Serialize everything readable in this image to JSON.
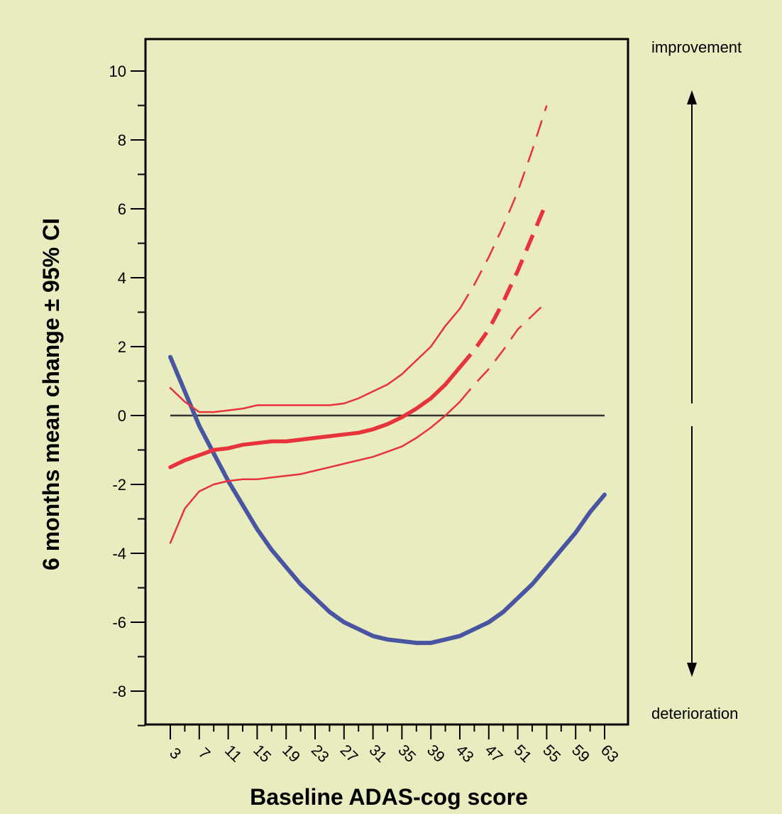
{
  "chart_data": {
    "type": "line",
    "xlabel": "Baseline ADAS-cog score",
    "ylabel": "6 months mean change ± 95% CI",
    "x_ticks": [
      3,
      7,
      11,
      15,
      19,
      23,
      27,
      31,
      35,
      39,
      43,
      47,
      51,
      55,
      59,
      63
    ],
    "y_ticks": [
      10,
      8,
      6,
      4,
      2,
      0,
      -2,
      -4,
      -6,
      -8
    ],
    "xlim": [
      -0.5,
      66.5
    ],
    "ylim": [
      -8.8,
      11.2
    ],
    "grid": false,
    "reference_line": 0,
    "annotations": {
      "top": "improvement",
      "bottom": "deterioration"
    },
    "colors": {
      "treatment": "#e8323c",
      "placebo": "#4a55a2",
      "zero_line": "#333333",
      "background": "#e8ecbf"
    },
    "series": [
      {
        "color": "#4a55a2",
        "x": [
          3,
          5,
          7,
          9,
          11,
          13,
          15,
          17,
          19,
          21,
          23,
          25,
          27,
          29,
          31,
          33,
          35,
          37,
          39,
          41,
          43,
          45,
          47,
          49,
          51,
          53,
          55,
          57,
          59,
          61,
          63
        ],
        "values": [
          1.7,
          0.7,
          -0.3,
          -1.1,
          -1.9,
          -2.6,
          -3.3,
          -3.9,
          -4.4,
          -4.9,
          -5.3,
          -5.7,
          -6.0,
          -6.2,
          -6.4,
          -6.5,
          -6.55,
          -6.6,
          -6.6,
          -6.5,
          -6.4,
          -6.2,
          -6.0,
          -5.7,
          -5.3,
          -4.9,
          -4.4,
          -3.9,
          -3.4,
          -2.8,
          -2.3
        ]
      },
      {
        "color": "#e8323c",
        "x": [
          3,
          5,
          7,
          9,
          11,
          13,
          15,
          17,
          19,
          21,
          23,
          25,
          27,
          29,
          31,
          33,
          35,
          37,
          39,
          41,
          43,
          45,
          47,
          49,
          51,
          53,
          55
        ],
        "values": [
          -1.5,
          -1.3,
          -1.15,
          -1.0,
          -0.95,
          -0.85,
          -0.8,
          -0.75,
          -0.75,
          -0.7,
          -0.65,
          -0.6,
          -0.55,
          -0.5,
          -0.4,
          -0.25,
          -0.05,
          0.2,
          0.5,
          0.9,
          1.4,
          1.9,
          2.5,
          3.3,
          4.2,
          5.2,
          6.2
        ]
      },
      {
        "color": "#e8323c",
        "x": [
          3,
          5,
          7,
          9,
          11,
          13,
          15,
          17,
          19,
          21,
          23,
          25,
          27,
          29,
          31,
          33,
          35,
          37,
          39,
          41,
          43,
          45,
          47,
          49,
          51,
          53,
          55
        ],
        "values": [
          0.8,
          0.4,
          0.1,
          0.1,
          0.15,
          0.2,
          0.3,
          0.3,
          0.3,
          0.3,
          0.3,
          0.3,
          0.35,
          0.5,
          0.7,
          0.9,
          1.2,
          1.6,
          2.0,
          2.6,
          3.1,
          3.8,
          4.6,
          5.5,
          6.5,
          7.7,
          9.0
        ]
      },
      {
        "color": "#e8323c",
        "x": [
          3,
          5,
          7,
          9,
          11,
          13,
          15,
          17,
          19,
          21,
          23,
          25,
          27,
          29,
          31,
          33,
          35,
          37,
          39,
          41,
          43,
          45,
          47,
          49,
          51,
          53,
          55
        ],
        "values": [
          -3.7,
          -2.7,
          -2.2,
          -2.0,
          -1.9,
          -1.85,
          -1.85,
          -1.8,
          -1.75,
          -1.7,
          -1.6,
          -1.5,
          -1.4,
          -1.3,
          -1.2,
          -1.05,
          -0.9,
          -0.65,
          -0.35,
          0.0,
          0.4,
          0.9,
          1.35,
          1.9,
          2.5,
          2.9,
          3.3
        ]
      }
    ]
  }
}
